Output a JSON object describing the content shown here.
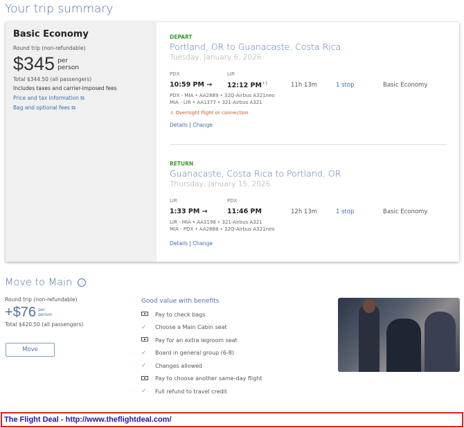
{
  "page_title": "Your trip summary",
  "summary": {
    "fare": "Basic Economy",
    "trip_type": "Round trip (non-refundable)",
    "price": "$345",
    "per": "per",
    "person": "person",
    "total": "Total $344.50 (all passengers)",
    "includes": "Includes taxes and carrier-imposed fees",
    "price_tax_link": "Price and tax information",
    "bag_link": "Bag and optional fees"
  },
  "depart": {
    "label": "DEPART",
    "route": "Portland, OR to Guanacaste, Costa Rica",
    "date": "Tuesday, January 6, 2026",
    "from_code": "PDX",
    "to_code": "LIR",
    "dep_time": "10:59 PM",
    "arr_time": "12:12 PM",
    "day_offset": "+1",
    "duration": "11h 13m",
    "stops": "1 stop",
    "cabin": "Basic Economy",
    "legs": [
      "PDX - MIA • AA2889 • 32Q-Airbus A321neo",
      "MIA - LIR • AA1377 • 321-Airbus A321"
    ],
    "warning": "Overnight flight or connection",
    "details": "Details",
    "sep": "|",
    "change": "Change"
  },
  "return": {
    "label": "RETURN",
    "route": "Guanacaste, Costa Rica to Portland, OR",
    "date": "Thursday, January 15, 2026",
    "from_code": "LIR",
    "to_code": "PDX",
    "dep_time": "1:33 PM",
    "arr_time": "11:46 PM",
    "duration": "12h 13m",
    "stops": "1 stop",
    "cabin": "Basic Economy",
    "legs": [
      "LIR - MIA • AA3198 • 321-Airbus A321",
      "MIA - PDX • AA2888 • 32Q-Airbus A321neo"
    ],
    "details": "Details",
    "sep": "|",
    "change": "Change"
  },
  "upgrade": {
    "title": "Move to Main",
    "trip_type": "Round trip (non-refundable)",
    "price": "+$76",
    "per": "per",
    "person": "person",
    "total": "Total $420.50 (all passengers)",
    "button": "Move",
    "benefits_title": "Good value with benefits",
    "benefits": [
      {
        "icon": "money-icon",
        "text": "Pay to check bags"
      },
      {
        "icon": "check-icon",
        "text": "Choose a Main Cabin seat"
      },
      {
        "icon": "money-icon",
        "text": "Pay for an extra legroom seat"
      },
      {
        "icon": "check-icon",
        "text": "Board in general group (6-8)"
      },
      {
        "icon": "check-icon",
        "text": "Changes allowed"
      },
      {
        "icon": "money-icon",
        "text": "Pay to choose another same-day flight"
      },
      {
        "icon": "check-icon",
        "text": "Full refund to travel credit"
      }
    ]
  },
  "footer": "The Flight Deal - http://www.theflightdeal.com/"
}
